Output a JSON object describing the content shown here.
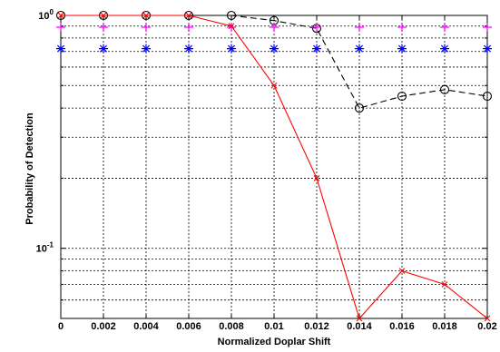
{
  "chart_data": {
    "type": "line",
    "title": "",
    "xlabel": "Normalized Doplar Shift",
    "ylabel": "Probability of Detection",
    "xlim": [
      0,
      0.02
    ],
    "ylim": [
      0.05,
      1
    ],
    "yscale": "log",
    "grid": true,
    "legend": "none",
    "x_tick_labels": [
      "0",
      "0.002",
      "0.004",
      "0.006",
      "0.008",
      "0.01",
      "0.012",
      "0.014",
      "0.016",
      "0.018",
      "0.02"
    ],
    "y_tick_labels": [
      {
        "value": 1,
        "base": "10",
        "exp": "0"
      },
      {
        "value": 0.1,
        "base": "10",
        "exp": "-1"
      }
    ],
    "x": [
      0,
      0.002,
      0.004,
      0.006,
      0.008,
      0.01,
      0.012,
      0.014,
      0.016,
      0.018,
      0.02
    ],
    "series": [
      {
        "marker": "circle",
        "line": "dashed",
        "color": "#000000",
        "values": [
          1.0,
          1.0,
          1.0,
          1.0,
          1.0,
          0.95,
          0.88,
          0.4,
          0.45,
          0.48,
          0.45
        ]
      },
      {
        "marker": "plus",
        "line": "none",
        "color": "#ff00ff",
        "values": [
          0.89,
          0.89,
          0.89,
          0.89,
          0.89,
          0.89,
          0.89,
          0.89,
          0.89,
          0.89,
          0.89
        ]
      },
      {
        "marker": "asterisk",
        "line": "none",
        "color": "#0000ff",
        "values": [
          0.72,
          0.72,
          0.72,
          0.72,
          0.72,
          0.72,
          0.72,
          0.72,
          0.72,
          0.72,
          0.72
        ]
      },
      {
        "marker": "x",
        "line": "solid",
        "color": "#ff0000",
        "values": [
          1.0,
          1.0,
          1.0,
          1.0,
          0.9,
          0.5,
          0.2,
          0.05,
          0.08,
          0.07,
          0.05
        ]
      }
    ]
  }
}
